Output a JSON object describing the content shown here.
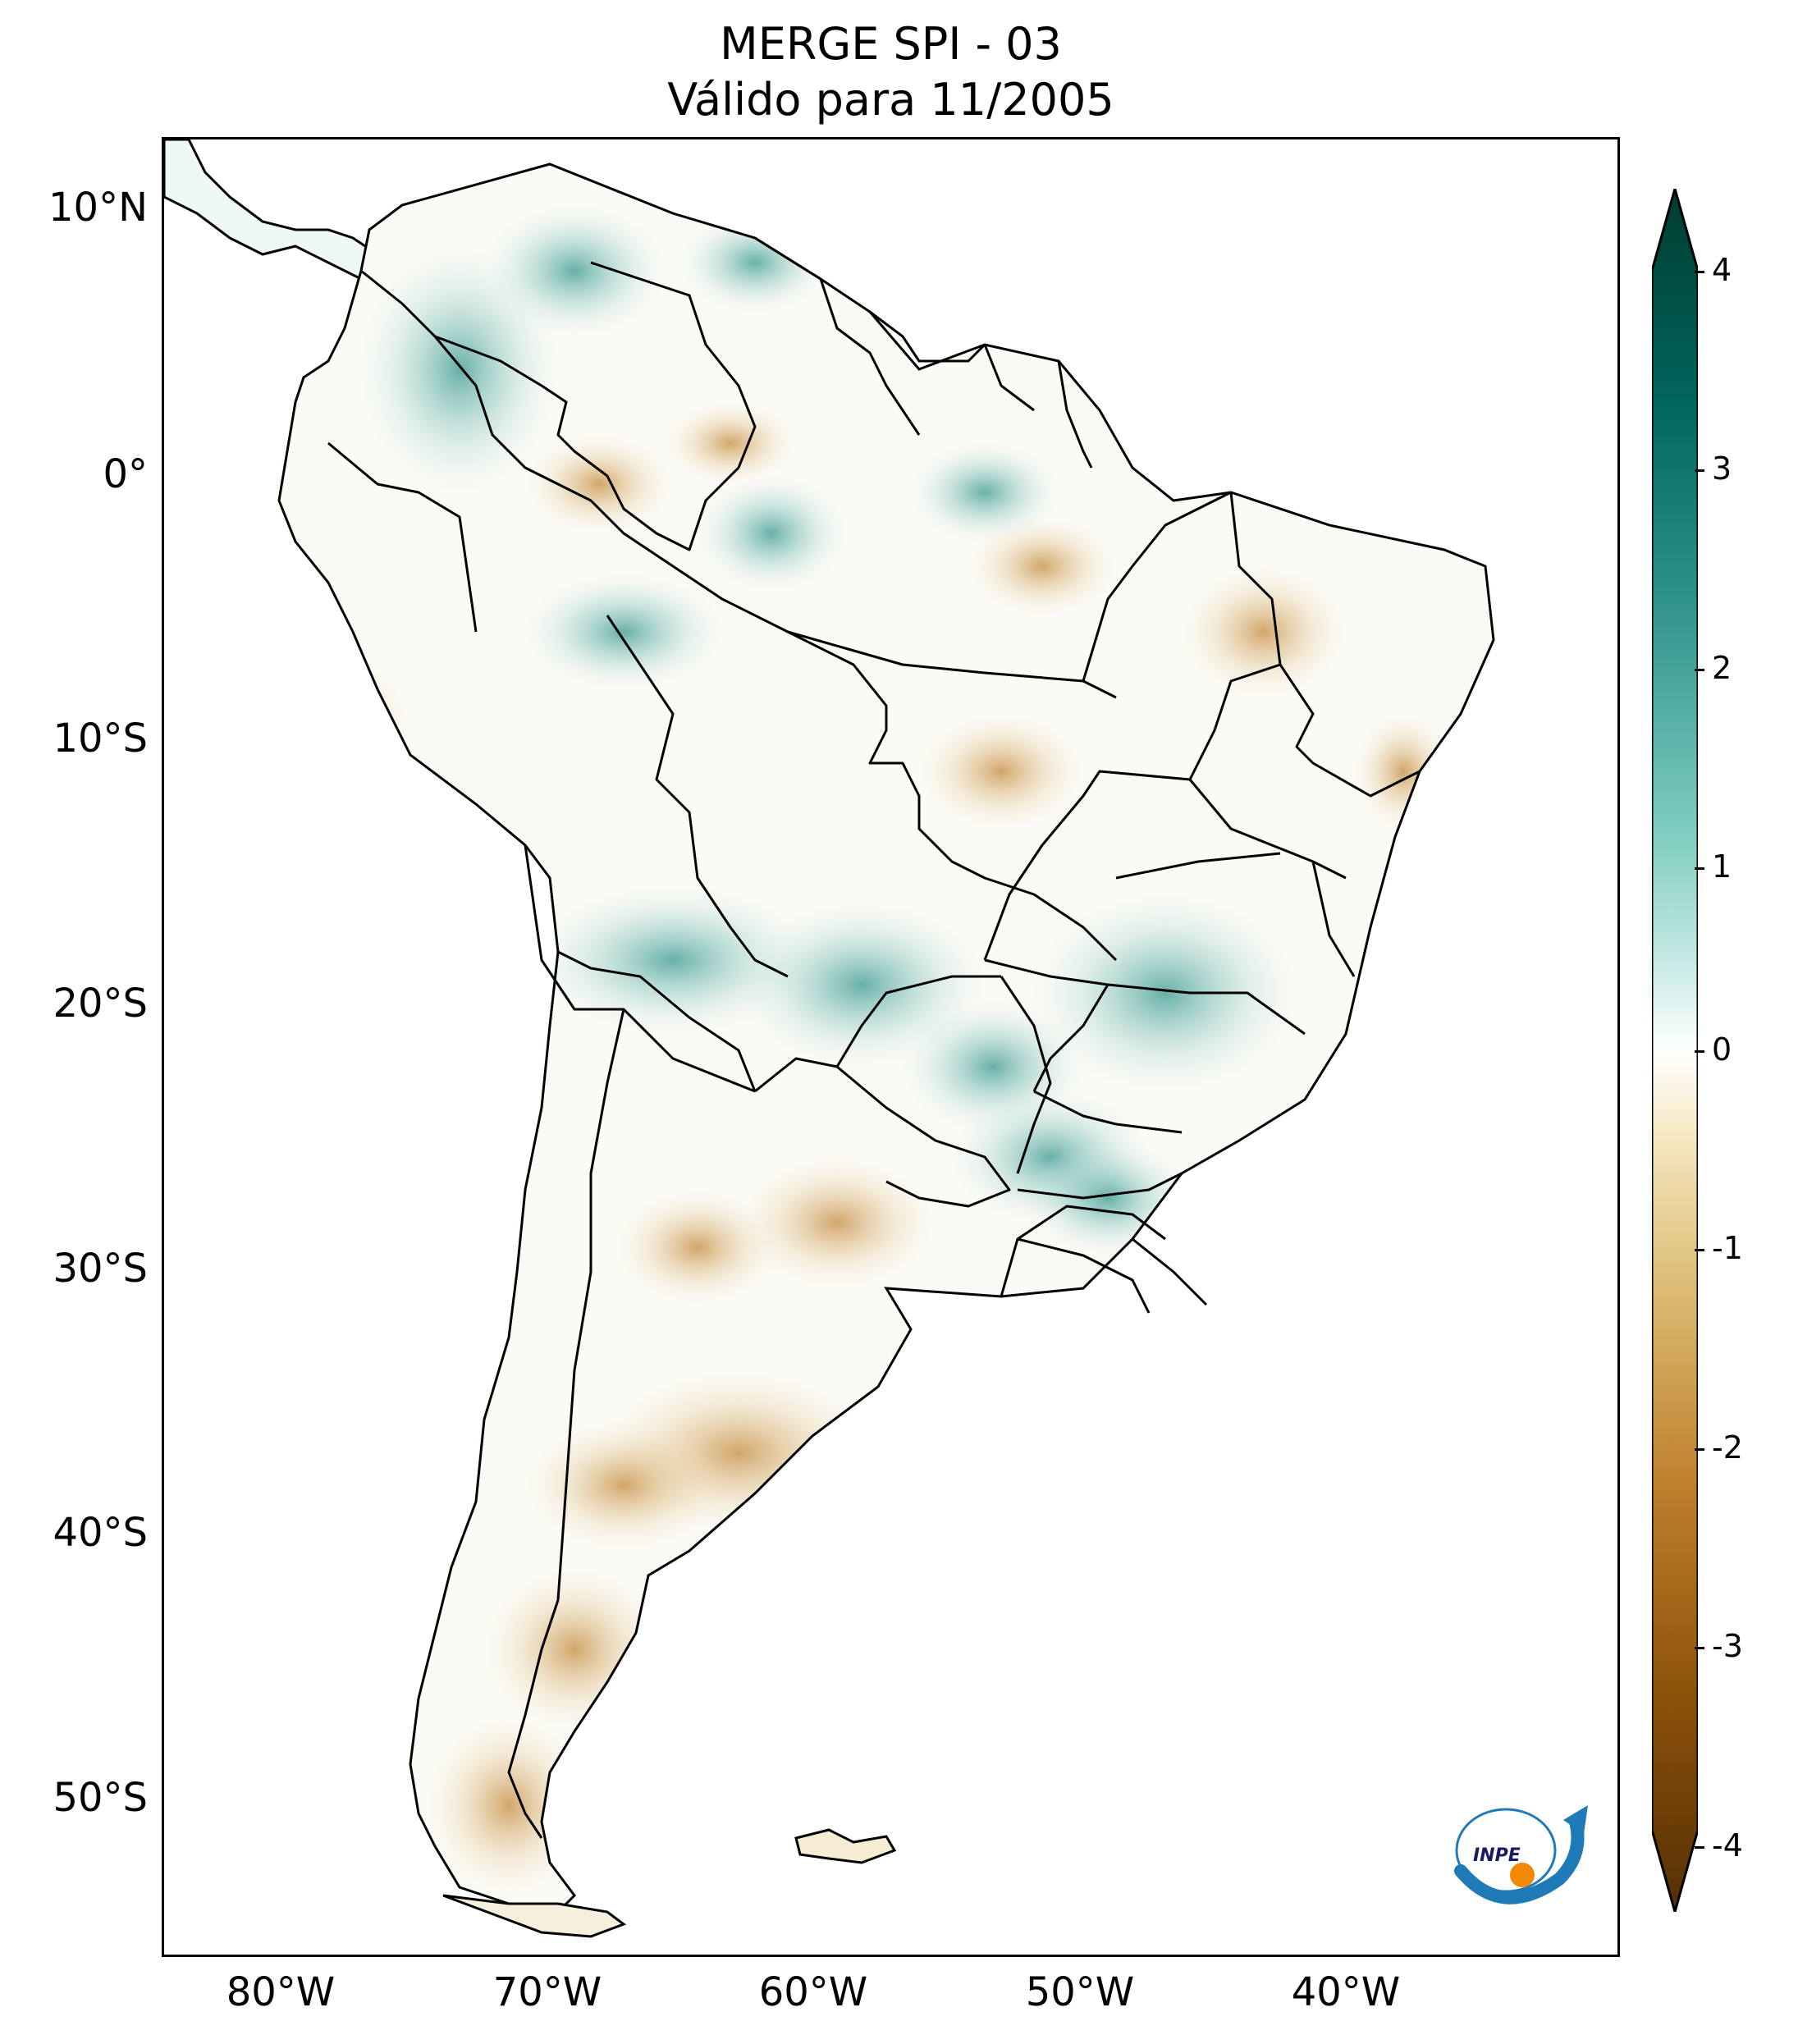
{
  "title": {
    "line1": "MERGE   SPI - 03",
    "line2": "Válido para 11/2005"
  },
  "lat_labels": [
    "10°N",
    "0°",
    "10°S",
    "20°S",
    "30°S",
    "40°S",
    "50°S"
  ],
  "lon_labels": [
    "80°W",
    "70°W",
    "60°W",
    "50°W",
    "40°W"
  ],
  "colorbar": {
    "ticks": [
      "4",
      "3",
      "2",
      "1",
      "0",
      "-1",
      "-2",
      "-3",
      "-4"
    ],
    "colormap": "BrBG",
    "colors": {
      "max": "#003c30",
      "high": "#35978f",
      "light_high": "#c7eae5",
      "zero": "#ffffff",
      "light_low": "#f6e8c3",
      "low": "#bf812d",
      "min": "#543005"
    }
  },
  "logo": {
    "text": "INPE"
  }
}
